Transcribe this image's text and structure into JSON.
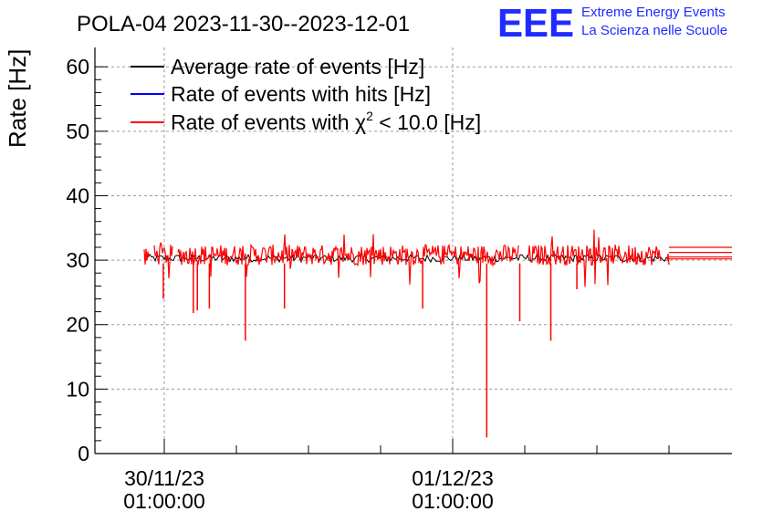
{
  "header": {
    "title": "POLA-04 2023-11-30--2023-12-01",
    "logo_text": "EEE",
    "logo_line1": "Extreme Energy Events",
    "logo_line2": "La Scienza nelle Scuole"
  },
  "colors": {
    "logo": "#1f2bff",
    "average": "#000000",
    "hits": "#0000ff",
    "chi2": "#ff0000",
    "grid": "#9a9a9a"
  },
  "chart_data": {
    "type": "line",
    "title": "POLA-04 2023-11-30--2023-12-01",
    "ylabel": "Rate [Hz]",
    "ylim": [
      0,
      63
    ],
    "yticks": [
      0,
      10,
      20,
      30,
      40,
      50,
      60
    ],
    "xlim_hours_note": "",
    "xticks": [
      {
        "date": "30/11/23",
        "time": "01:00:00"
      },
      {
        "date": "01/12/23",
        "time": "01:00:00"
      }
    ],
    "grid": true,
    "legend_position": "top-left",
    "series": [
      {
        "name": "Average rate of events [Hz]",
        "typical": 30.3
      },
      {
        "name": "Rate of events with hits [Hz]",
        "typical": 30.8
      },
      {
        "name": "Rate of events with χ² < 10.0 [Hz]",
        "typical": 30.8,
        "dips": [
          {
            "x": "2023-11-30 00:55",
            "y": 24
          },
          {
            "x": "2023-11-30 03:25",
            "y": 21.8
          },
          {
            "x": "2023-11-30 03:45",
            "y": 22.2
          },
          {
            "x": "2023-11-30 04:45",
            "y": 22.5
          },
          {
            "x": "2023-11-30 07:45",
            "y": 17.5
          },
          {
            "x": "2023-11-30 11:00",
            "y": 22.5
          },
          {
            "x": "2023-11-30 22:30",
            "y": 22.5
          },
          {
            "x": "2023-12-01 03:50",
            "y": 2.5
          },
          {
            "x": "2023-12-01 06:35",
            "y": 20.5
          },
          {
            "x": "2023-12-01 09:10",
            "y": 17.5
          },
          {
            "x": "2023-12-01 11:20",
            "y": 25.5
          }
        ]
      }
    ],
    "legend": {
      "average_label": "Average rate of events [Hz]",
      "hits_label": "Rate of events with hits [Hz]",
      "chi2_label_prefix": "Rate of events with ",
      "chi2_symbol": "χ",
      "chi2_sup": "2",
      "chi2_label_suffix": " < 10.0 [Hz]"
    }
  }
}
